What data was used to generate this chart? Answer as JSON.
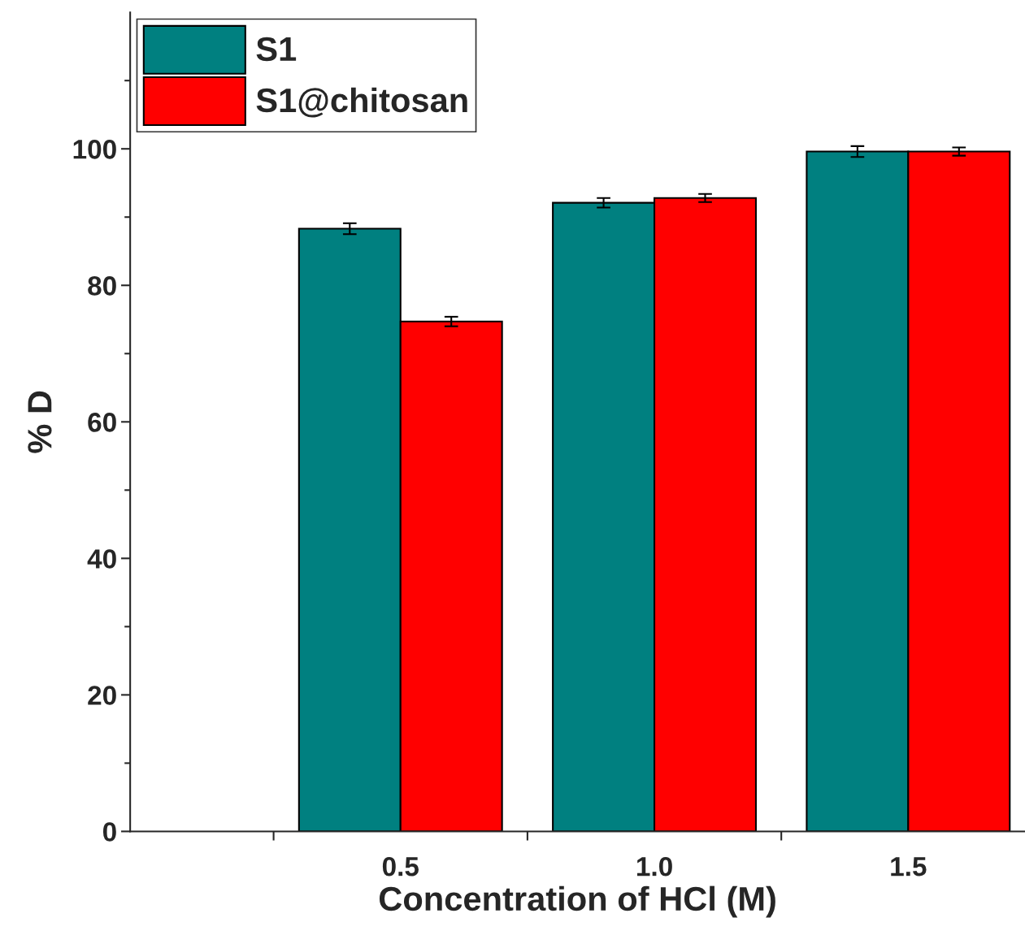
{
  "chart_data": {
    "type": "bar",
    "xlabel": "Concentration of HCl (M)",
    "ylabel": "% D",
    "categories": [
      "0.5",
      "1.0",
      "1.5"
    ],
    "series": [
      {
        "name": "S1",
        "color": "#008080",
        "values": [
          88.3,
          92.1,
          99.6
        ],
        "errors": [
          0.8,
          0.7,
          0.8
        ]
      },
      {
        "name": "S1@chitosan",
        "color": "#ff0000",
        "values": [
          74.7,
          92.8,
          99.6
        ],
        "errors": [
          0.7,
          0.6,
          0.6
        ]
      }
    ],
    "ylim": [
      0,
      120
    ],
    "yticks": [
      0,
      {
        "value": 10,
        "label": null
      },
      20,
      {
        "value": 30,
        "label": null
      },
      40,
      {
        "value": 50,
        "label": null
      },
      60,
      {
        "value": 70,
        "label": null
      },
      80,
      {
        "value": 90,
        "label": null
      },
      100,
      {
        "value": 110,
        "label": null
      }
    ],
    "legend": "top left",
    "grid": false
  }
}
